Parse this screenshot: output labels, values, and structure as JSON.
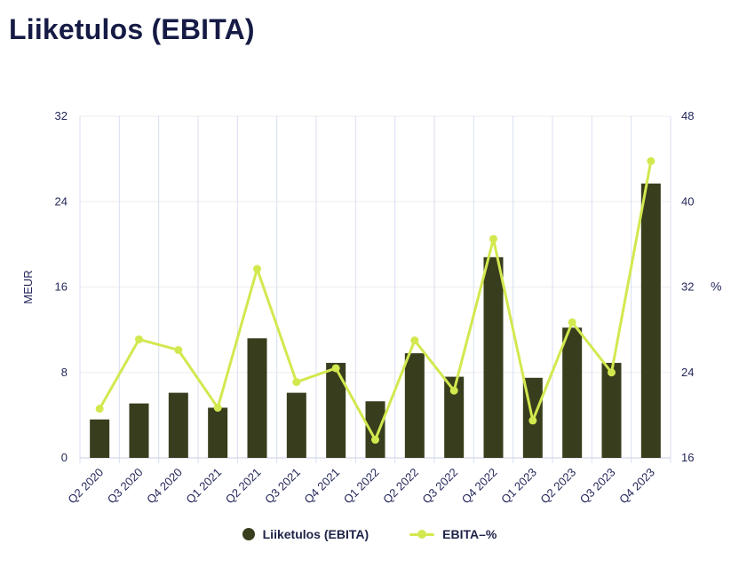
{
  "page": {
    "title": "Liiketulos (EBITA)"
  },
  "colors": {
    "bar": "#383e1d",
    "line": "#d3e84f",
    "title_text": "#161b45",
    "axis_text": "#23275a",
    "grid_vertical": "#d9def2",
    "grid_horizontal": "#ededed",
    "axis_line": "#c9cfe6"
  },
  "chart_data": {
    "type": "bar",
    "subtype": "bar+line combo, dual axis",
    "title": "Liiketulos (EBITA)",
    "categories": [
      "Q2 2020",
      "Q3 2020",
      "Q4 2020",
      "Q1 2021",
      "Q2 2021",
      "Q3 2021",
      "Q4 2021",
      "Q1 2022",
      "Q2 2022",
      "Q3 2022",
      "Q4 2022",
      "Q1 2023",
      "Q2 2023",
      "Q3 2023",
      "Q4 2023"
    ],
    "series": [
      {
        "name": "Liiketulos (EBITA)",
        "type": "bar",
        "axis": "left",
        "color": "#383e1d",
        "values": [
          3.6,
          5.1,
          6.1,
          4.7,
          11.2,
          6.1,
          8.9,
          5.3,
          9.8,
          7.6,
          18.8,
          7.5,
          12.2,
          8.9,
          25.7
        ]
      },
      {
        "name": "EBITA–%",
        "type": "line",
        "axis": "right",
        "color": "#d3e84f",
        "values": [
          20.6,
          27.1,
          26.1,
          20.7,
          33.7,
          23.1,
          24.4,
          17.7,
          27.0,
          22.3,
          36.5,
          19.5,
          28.7,
          24.0,
          43.8
        ]
      }
    ],
    "left_axis": {
      "label": "MEUR",
      "min": 0,
      "max": 32,
      "ticks": [
        0,
        8,
        16,
        24,
        32
      ]
    },
    "right_axis": {
      "label": "%",
      "min": 16,
      "max": 48,
      "ticks": [
        16,
        24,
        32,
        40,
        48
      ]
    },
    "legend_position": "bottom",
    "grid": {
      "vertical": true,
      "horizontal": true
    },
    "x_label_rotation": -45
  }
}
